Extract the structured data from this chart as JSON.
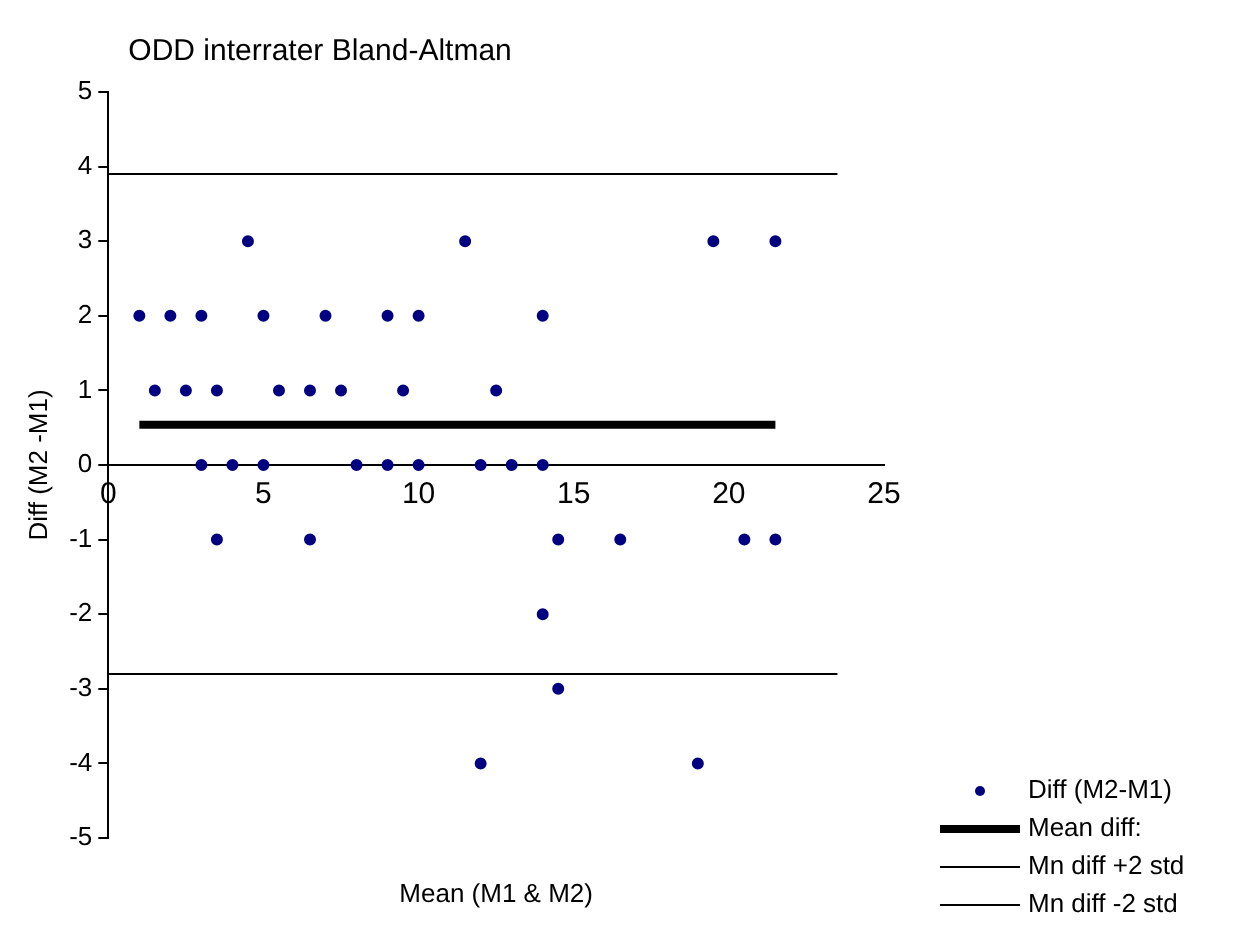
{
  "chart_data": {
    "type": "scatter",
    "title": "ODD interrater Bland-Altman",
    "xlabel": "Mean (M1 & M2)",
    "ylabel": "Diff (M2 -M1)",
    "xlim": [
      0,
      25
    ],
    "xticks": [
      0,
      5,
      10,
      15,
      20,
      25
    ],
    "ylim": [
      -5,
      5
    ],
    "yticks": [
      -5,
      -4,
      -3,
      -2,
      -1,
      0,
      1,
      2,
      3,
      4,
      5
    ],
    "grid": false,
    "legend": "bottom right",
    "series": [
      {
        "name": "Diff (M2-M1)",
        "marker": "circle",
        "color": "#000080",
        "x": [
          4.5,
          11.5,
          19.5,
          21.5,
          1,
          2,
          3,
          5,
          7,
          9,
          10,
          14,
          1.5,
          2.5,
          3.5,
          5.5,
          6.5,
          7.5,
          9.5,
          12.5,
          3,
          4,
          5,
          8,
          9,
          10,
          12,
          13,
          14,
          3.5,
          6.5,
          14.5,
          16.5,
          20.5,
          21.5,
          14,
          14.5,
          12,
          19
        ],
        "values": [
          3,
          3,
          3,
          3,
          2,
          2,
          2,
          2,
          2,
          2,
          2,
          2,
          1,
          1,
          1,
          1,
          1,
          1,
          1,
          1,
          0,
          0,
          0,
          0,
          0,
          0,
          0,
          0,
          0,
          -1,
          -1,
          -1,
          -1,
          -1,
          -1,
          -2,
          -3,
          -4,
          -4
        ]
      },
      {
        "name": "Mean diff:",
        "type": "line",
        "color": "#000000",
        "x": [
          1,
          21.5
        ],
        "values": [
          0.54,
          0.54
        ]
      },
      {
        "name": "Mn diff +2 std",
        "type": "line",
        "color": "#000000",
        "x": [
          0,
          23.5
        ],
        "values": [
          3.9,
          3.9
        ]
      },
      {
        "name": "Mn diff -2 std",
        "type": "line",
        "color": "#000000",
        "x": [
          0,
          23.5
        ],
        "values": [
          -2.8,
          -2.8
        ]
      }
    ]
  }
}
